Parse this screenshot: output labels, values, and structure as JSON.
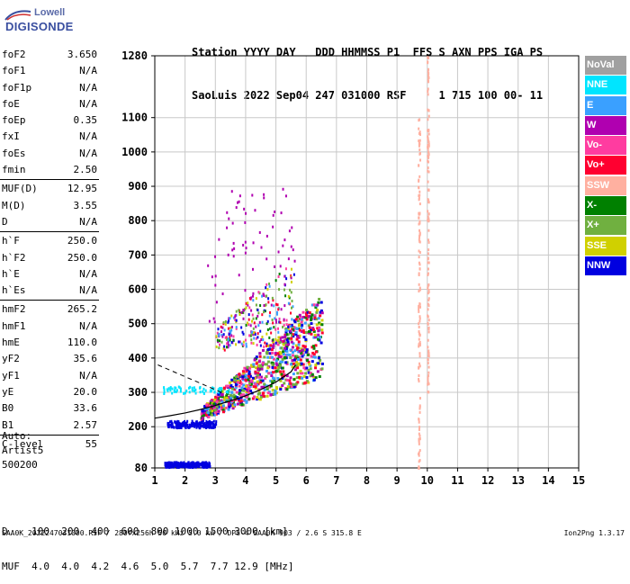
{
  "logo": {
    "line1": "Lowell",
    "line2": "DIGISONDE"
  },
  "header": {
    "line1": "Station YYYY DAY   DDD HHMMSS P1  FFS S AXN PPS IGA PS",
    "line2": "SaoLuis 2022 Sep04 247 031000 RSF     1 715 100 00- 11"
  },
  "parameters": [
    {
      "name": "foF2",
      "value": "3.650"
    },
    {
      "name": "foF1",
      "value": "N/A"
    },
    {
      "name": "foF1p",
      "value": "N/A"
    },
    {
      "name": "foE",
      "value": "N/A"
    },
    {
      "name": "foEp",
      "value": "0.35"
    },
    {
      "name": "fxI",
      "value": "N/A"
    },
    {
      "name": "foEs",
      "value": "N/A"
    },
    {
      "name": "fmin",
      "value": "2.50"
    },
    {
      "name": "MUF(D)",
      "value": "12.95"
    },
    {
      "name": "M(D)",
      "value": "3.55"
    },
    {
      "name": "D",
      "value": "N/A"
    },
    {
      "name": "h`F",
      "value": "250.0"
    },
    {
      "name": "h`F2",
      "value": "250.0"
    },
    {
      "name": "h`E",
      "value": "N/A"
    },
    {
      "name": "h`Es",
      "value": "N/A"
    },
    {
      "name": "hmF2",
      "value": "265.2"
    },
    {
      "name": "hmF1",
      "value": "N/A"
    },
    {
      "name": "hmE",
      "value": "110.0"
    },
    {
      "name": "yF2",
      "value": "35.6"
    },
    {
      "name": "yF1",
      "value": "N/A"
    },
    {
      "name": "yE",
      "value": "20.0"
    },
    {
      "name": "B0",
      "value": "33.6"
    },
    {
      "name": "B1",
      "value": "2.57"
    },
    {
      "name": "C-level",
      "value": "55"
    }
  ],
  "autoscaling": {
    "line1": "Auto:",
    "line2": "Artist5",
    "line3": "500200"
  },
  "distance_table": {
    "row1": "D    100  200  400  600  800 1000 1500 3000 [km]",
    "row2": "MUF  4.0  4.0  4.2  4.6  5.0  5.7  7.7 12.9 [MHz]"
  },
  "footer": {
    "file_info": "SAA0K_2022247031000.RSF / 280fx256h 50 kHz 5.0 km / DPS-4 SAA0K 903 / 2.6 S 315.8 E",
    "version": "Ion2Png 1.3.17"
  },
  "legend": [
    {
      "label": "NoVal",
      "color": "#a0a0a0"
    },
    {
      "label": "NNE",
      "color": "#00e5ff"
    },
    {
      "label": "E",
      "color": "#3aa0ff"
    },
    {
      "label": "W",
      "color": "#b000b0"
    },
    {
      "label": "Vo-",
      "color": "#ff3ca0"
    },
    {
      "label": "Vo+",
      "color": "#ff0030"
    },
    {
      "label": "SSW",
      "color": "#ffb0a0"
    },
    {
      "label": "X-",
      "color": "#008000"
    },
    {
      "label": "X+",
      "color": "#70b040"
    },
    {
      "label": "SSE",
      "color": "#d0d000"
    },
    {
      "label": "NNW",
      "color": "#0000e0"
    }
  ],
  "chart_data": {
    "type": "scatter",
    "title": "",
    "xlabel": "",
    "ylabel": "",
    "xlim": [
      1,
      15
    ],
    "ylim": [
      80,
      1280
    ],
    "x_ticks": [
      "1",
      "2",
      "3",
      "4",
      "5",
      "6",
      "7",
      "8",
      "9",
      "10",
      "11",
      "12",
      "13",
      "14",
      "15"
    ],
    "y_ticks": [
      {
        "value": 80,
        "label": "80"
      },
      {
        "value": 200,
        "label": "200"
      },
      {
        "value": 300,
        "label": "300"
      },
      {
        "value": 400,
        "label": "400"
      },
      {
        "value": 500,
        "label": "500"
      },
      {
        "value": 600,
        "label": "600"
      },
      {
        "value": 700,
        "label": "700"
      },
      {
        "value": 800,
        "label": "800"
      },
      {
        "value": 900,
        "label": "900"
      },
      {
        "value": 1000,
        "label": "1000"
      },
      {
        "value": 1100,
        "label": "1100"
      },
      {
        "value": 1280,
        "label": "1280"
      }
    ],
    "grid": true,
    "regions": [
      {
        "name": "F-trace",
        "fmin": 2.5,
        "fmax": 6.5,
        "hmin": 225,
        "hmax": 420,
        "points": 900,
        "color": "Vo+"
      },
      {
        "name": "F-trace-upper",
        "fmin": 3.0,
        "fmax": 5.6,
        "hmin": 420,
        "hmax": 650,
        "points": 250,
        "color": "W"
      },
      {
        "name": "low-echoes",
        "fmin": 1.3,
        "fmax": 2.8,
        "hmin": 85,
        "hmax": 100,
        "points": 250,
        "color": "NNW"
      },
      {
        "name": "mid-echoes",
        "fmin": 1.4,
        "fmax": 3.0,
        "hmin": 200,
        "hmax": 220,
        "points": 180,
        "color": "NNW"
      },
      {
        "name": "E-echoes",
        "fmin": 1.2,
        "fmax": 3.5,
        "hmin": 300,
        "hmax": 320,
        "points": 60,
        "color": "NNE"
      },
      {
        "name": "spread",
        "fmin": 2.7,
        "fmax": 5.6,
        "hmin": 480,
        "hmax": 900,
        "points": 80,
        "color": "W"
      },
      {
        "name": "interference-9.7",
        "fmin": 9.68,
        "fmax": 9.74,
        "hmin": 80,
        "hmax": 1100,
        "points": 120,
        "color": "SSW"
      },
      {
        "name": "interference-10",
        "fmin": 9.98,
        "fmax": 10.03,
        "hmin": 300,
        "hmax": 1280,
        "points": 120,
        "color": "SSW"
      }
    ],
    "model_curve": {
      "x": [
        1.0,
        1.5,
        2.0,
        2.5,
        3.0,
        3.5,
        4.0,
        4.5,
        5.0,
        5.5,
        5.65
      ],
      "y": [
        225,
        232,
        240,
        250,
        262,
        275,
        290,
        308,
        330,
        360,
        380
      ]
    }
  }
}
